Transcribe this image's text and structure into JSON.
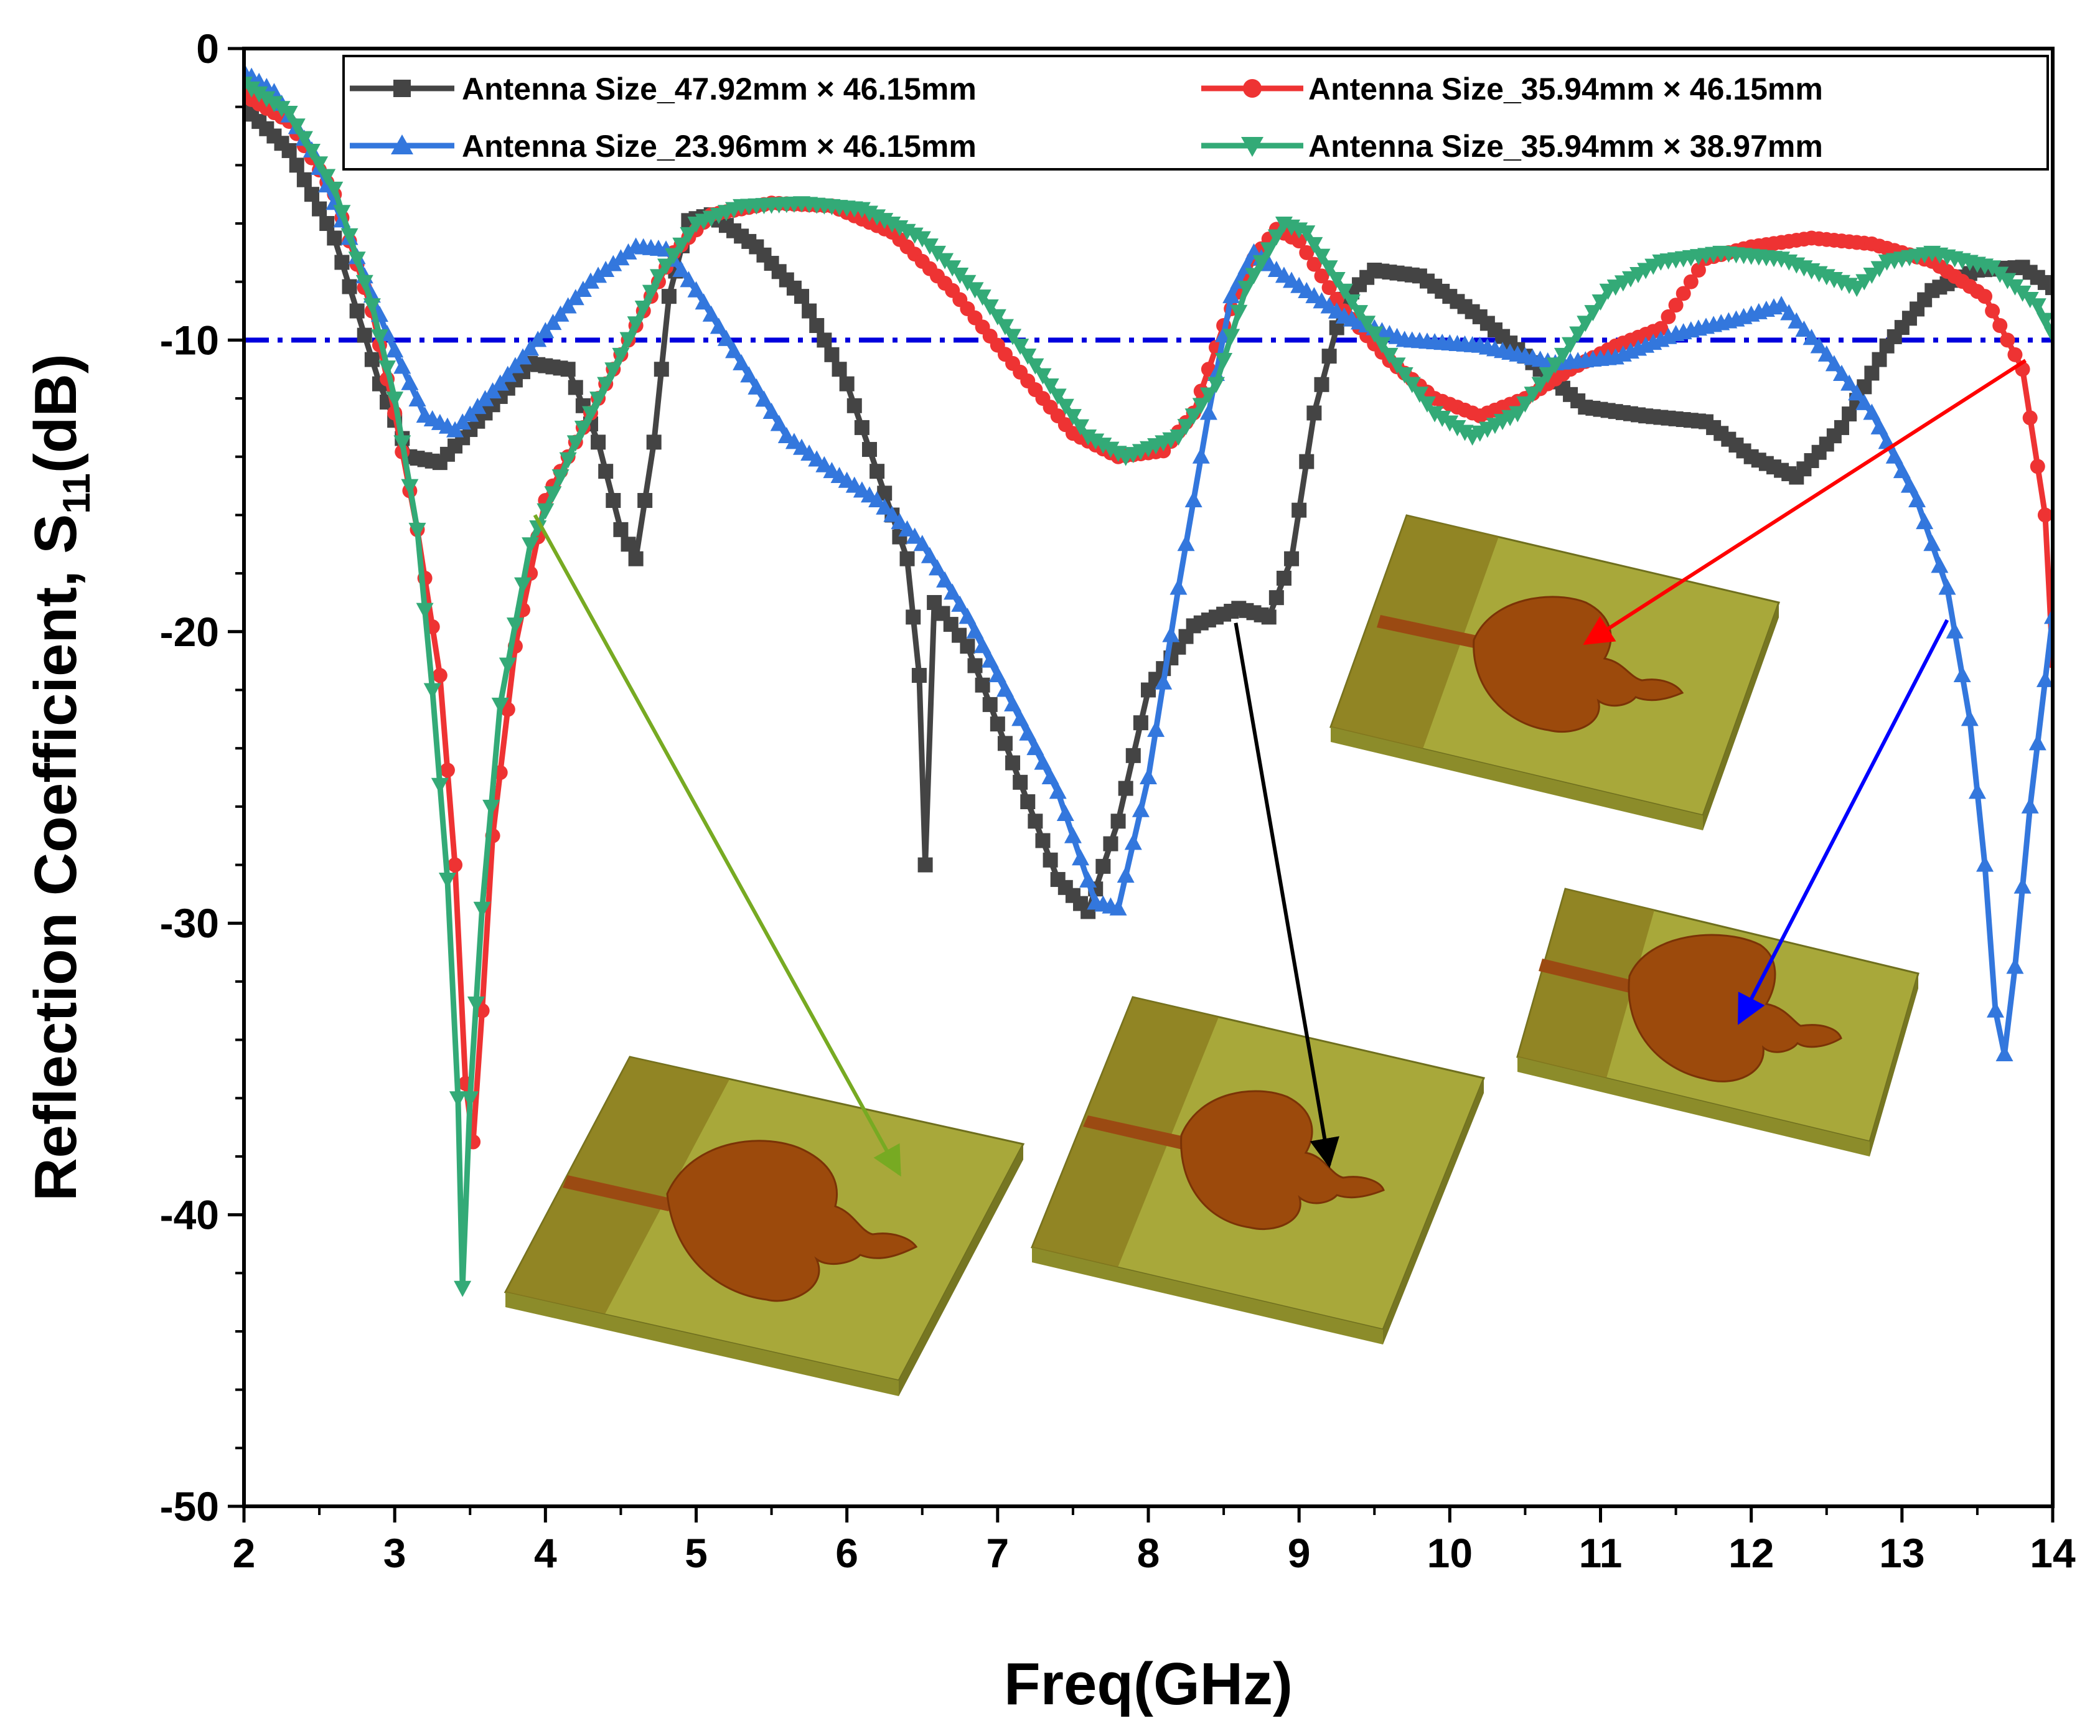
{
  "chart_data": {
    "type": "line",
    "title": "",
    "xlabel": "Freq(GHz)",
    "ylabel": {
      "main": "Reflection Coefficient, S",
      "sub": "11",
      "unit": "(dB)"
    },
    "xlim": [
      2,
      14
    ],
    "ylim": [
      -50,
      0
    ],
    "xticks": [
      2,
      3,
      4,
      5,
      6,
      7,
      8,
      9,
      10,
      11,
      12,
      13,
      14
    ],
    "yticks": [
      0,
      -10,
      -20,
      -30,
      -40,
      -50
    ],
    "reference_line": {
      "y": -10,
      "color": "#0000dd",
      "style": "dash-dot"
    },
    "legend_position": "top-right",
    "series": [
      {
        "name": "Antenna Size_47.92mm × 46.15mm",
        "color": "#444444",
        "marker": "square",
        "points": [
          [
            2.0,
            -2.0
          ],
          [
            2.3,
            -3.5
          ],
          [
            2.6,
            -6.5
          ],
          [
            2.9,
            -11.5
          ],
          [
            3.1,
            -14.0
          ],
          [
            3.3,
            -14.2
          ],
          [
            3.6,
            -12.5
          ],
          [
            3.9,
            -10.8
          ],
          [
            4.15,
            -11.0
          ],
          [
            4.35,
            -13.5
          ],
          [
            4.5,
            -16.5
          ],
          [
            4.6,
            -17.5
          ],
          [
            4.72,
            -13.5
          ],
          [
            4.82,
            -8.5
          ],
          [
            4.95,
            -5.9
          ],
          [
            5.1,
            -5.7
          ],
          [
            5.4,
            -6.8
          ],
          [
            5.7,
            -8.5
          ],
          [
            6.0,
            -11.5
          ],
          [
            6.2,
            -14.5
          ],
          [
            6.4,
            -17.5
          ],
          [
            6.48,
            -21.5
          ],
          [
            6.52,
            -28.0
          ],
          [
            6.58,
            -19.0
          ],
          [
            6.8,
            -20.5
          ],
          [
            7.1,
            -24.5
          ],
          [
            7.4,
            -28.5
          ],
          [
            7.6,
            -29.6
          ],
          [
            7.8,
            -26.5
          ],
          [
            8.0,
            -22.0
          ],
          [
            8.3,
            -19.8
          ],
          [
            8.6,
            -19.2
          ],
          [
            8.8,
            -19.5
          ],
          [
            8.95,
            -17.5
          ],
          [
            9.1,
            -12.5
          ],
          [
            9.3,
            -8.6
          ],
          [
            9.5,
            -7.6
          ],
          [
            9.8,
            -7.8
          ],
          [
            10.2,
            -9.2
          ],
          [
            10.6,
            -11.0
          ],
          [
            10.9,
            -12.3
          ],
          [
            11.3,
            -12.6
          ],
          [
            11.7,
            -12.8
          ],
          [
            12.0,
            -14.0
          ],
          [
            12.3,
            -14.7
          ],
          [
            12.6,
            -13.0
          ],
          [
            12.9,
            -10.2
          ],
          [
            13.2,
            -8.3
          ],
          [
            13.5,
            -7.6
          ],
          [
            13.8,
            -7.5
          ],
          [
            14.0,
            -8.2
          ]
        ]
      },
      {
        "name": "Antenna Size_35.94mm × 46.15mm",
        "color": "#ee3333",
        "marker": "circle",
        "points": [
          [
            2.0,
            -1.6
          ],
          [
            2.3,
            -2.5
          ],
          [
            2.6,
            -5.0
          ],
          [
            2.85,
            -9.0
          ],
          [
            3.0,
            -12.5
          ],
          [
            3.15,
            -16.5
          ],
          [
            3.3,
            -21.5
          ],
          [
            3.4,
            -28.0
          ],
          [
            3.47,
            -35.5
          ],
          [
            3.52,
            -37.5
          ],
          [
            3.58,
            -33.0
          ],
          [
            3.65,
            -27.0
          ],
          [
            3.8,
            -20.5
          ],
          [
            4.0,
            -15.5
          ],
          [
            4.3,
            -12.5
          ],
          [
            4.6,
            -9.5
          ],
          [
            4.85,
            -7.0
          ],
          [
            5.1,
            -5.7
          ],
          [
            5.5,
            -5.3
          ],
          [
            5.9,
            -5.4
          ],
          [
            6.3,
            -6.3
          ],
          [
            6.7,
            -8.3
          ],
          [
            7.1,
            -10.8
          ],
          [
            7.5,
            -13.2
          ],
          [
            7.8,
            -14.0
          ],
          [
            8.1,
            -13.8
          ],
          [
            8.3,
            -12.5
          ],
          [
            8.5,
            -9.5
          ],
          [
            8.7,
            -7.2
          ],
          [
            8.85,
            -6.2
          ],
          [
            9.0,
            -6.6
          ],
          [
            9.3,
            -9.0
          ],
          [
            9.6,
            -10.7
          ],
          [
            9.9,
            -12.0
          ],
          [
            10.2,
            -12.6
          ],
          [
            10.5,
            -12.0
          ],
          [
            10.8,
            -11.0
          ],
          [
            11.1,
            -10.2
          ],
          [
            11.4,
            -9.6
          ],
          [
            11.7,
            -7.2
          ],
          [
            12.0,
            -6.8
          ],
          [
            12.4,
            -6.5
          ],
          [
            12.8,
            -6.7
          ],
          [
            13.2,
            -7.3
          ],
          [
            13.55,
            -8.5
          ],
          [
            13.8,
            -11.0
          ],
          [
            13.95,
            -16.0
          ],
          [
            14.0,
            -21.0
          ]
        ]
      },
      {
        "name": "Antenna Size_23.96mm × 46.15mm",
        "color": "#3377dd",
        "marker": "triangle-up",
        "points": [
          [
            2.0,
            -0.8
          ],
          [
            2.2,
            -1.5
          ],
          [
            2.45,
            -3.5
          ],
          [
            2.7,
            -6.5
          ],
          [
            2.95,
            -9.8
          ],
          [
            3.2,
            -12.6
          ],
          [
            3.4,
            -13.1
          ],
          [
            3.7,
            -11.5
          ],
          [
            4.0,
            -9.7
          ],
          [
            4.3,
            -8.0
          ],
          [
            4.6,
            -6.8
          ],
          [
            4.8,
            -6.9
          ],
          [
            5.0,
            -8.3
          ],
          [
            5.3,
            -10.8
          ],
          [
            5.6,
            -13.3
          ],
          [
            5.9,
            -14.5
          ],
          [
            6.2,
            -15.5
          ],
          [
            6.5,
            -17.0
          ],
          [
            6.8,
            -19.5
          ],
          [
            7.1,
            -22.5
          ],
          [
            7.4,
            -25.5
          ],
          [
            7.65,
            -29.3
          ],
          [
            7.8,
            -29.5
          ],
          [
            8.0,
            -25.0
          ],
          [
            8.2,
            -18.5
          ],
          [
            8.4,
            -12.5
          ],
          [
            8.55,
            -8.5
          ],
          [
            8.7,
            -7.0
          ],
          [
            8.9,
            -7.8
          ],
          [
            9.3,
            -9.2
          ],
          [
            9.7,
            -10.0
          ],
          [
            10.2,
            -10.2
          ],
          [
            10.7,
            -10.8
          ],
          [
            11.1,
            -10.6
          ],
          [
            11.5,
            -9.8
          ],
          [
            11.9,
            -9.3
          ],
          [
            12.2,
            -8.8
          ],
          [
            12.5,
            -10.5
          ],
          [
            12.8,
            -12.5
          ],
          [
            13.1,
            -15.5
          ],
          [
            13.3,
            -18.5
          ],
          [
            13.45,
            -23.0
          ],
          [
            13.55,
            -28.0
          ],
          [
            13.62,
            -33.0
          ],
          [
            13.68,
            -34.5
          ],
          [
            13.75,
            -31.5
          ],
          [
            13.85,
            -26.0
          ],
          [
            14.0,
            -19.5
          ]
        ]
      },
      {
        "name": "Antenna Size_35.94mm × 38.97mm",
        "color": "#33aa77",
        "marker": "triangle-down",
        "points": [
          [
            2.0,
            -1.2
          ],
          [
            2.3,
            -2.2
          ],
          [
            2.6,
            -4.8
          ],
          [
            2.85,
            -8.8
          ],
          [
            3.0,
            -12.0
          ],
          [
            3.15,
            -16.5
          ],
          [
            3.25,
            -22.0
          ],
          [
            3.35,
            -28.5
          ],
          [
            3.42,
            -36.0
          ],
          [
            3.45,
            -42.5
          ],
          [
            3.5,
            -36.0
          ],
          [
            3.58,
            -29.5
          ],
          [
            3.7,
            -22.5
          ],
          [
            3.9,
            -17.0
          ],
          [
            4.2,
            -13.5
          ],
          [
            4.5,
            -10.5
          ],
          [
            4.75,
            -7.8
          ],
          [
            5.0,
            -6.0
          ],
          [
            5.3,
            -5.4
          ],
          [
            5.7,
            -5.3
          ],
          [
            6.1,
            -5.5
          ],
          [
            6.5,
            -6.5
          ],
          [
            6.9,
            -8.5
          ],
          [
            7.3,
            -11.2
          ],
          [
            7.6,
            -13.3
          ],
          [
            7.85,
            -14.0
          ],
          [
            8.2,
            -13.3
          ],
          [
            8.45,
            -11.5
          ],
          [
            8.65,
            -8.2
          ],
          [
            8.9,
            -6.0
          ],
          [
            9.05,
            -6.3
          ],
          [
            9.3,
            -8.3
          ],
          [
            9.6,
            -10.5
          ],
          [
            9.9,
            -12.5
          ],
          [
            10.15,
            -13.3
          ],
          [
            10.45,
            -12.5
          ],
          [
            10.75,
            -10.5
          ],
          [
            11.05,
            -8.3
          ],
          [
            11.4,
            -7.3
          ],
          [
            11.8,
            -7.0
          ],
          [
            12.2,
            -7.2
          ],
          [
            12.5,
            -7.8
          ],
          [
            12.7,
            -8.2
          ],
          [
            12.9,
            -7.3
          ],
          [
            13.2,
            -7.0
          ],
          [
            13.6,
            -7.5
          ],
          [
            13.9,
            -8.8
          ],
          [
            14.0,
            -9.8
          ]
        ]
      }
    ],
    "annotation_arrows": [
      {
        "color": "#77aa22",
        "from": [
          3.93,
          -16.0
        ],
        "to": [
          6.35,
          -38.6
        ]
      },
      {
        "color": "#000000",
        "from": [
          8.58,
          -19.7
        ],
        "to": [
          9.2,
          -38.3
        ]
      },
      {
        "color": "#ff0000",
        "from": [
          13.82,
          -10.7
        ],
        "to": [
          10.9,
          -20.4
        ]
      },
      {
        "color": "#0000ff",
        "from": [
          13.3,
          -19.6
        ],
        "to": [
          11.92,
          -33.4
        ]
      }
    ],
    "insets": [
      {
        "id": "antenna-47"
      },
      {
        "id": "antenna-35"
      },
      {
        "id": "antenna-23"
      },
      {
        "id": "antenna-35b"
      }
    ]
  }
}
